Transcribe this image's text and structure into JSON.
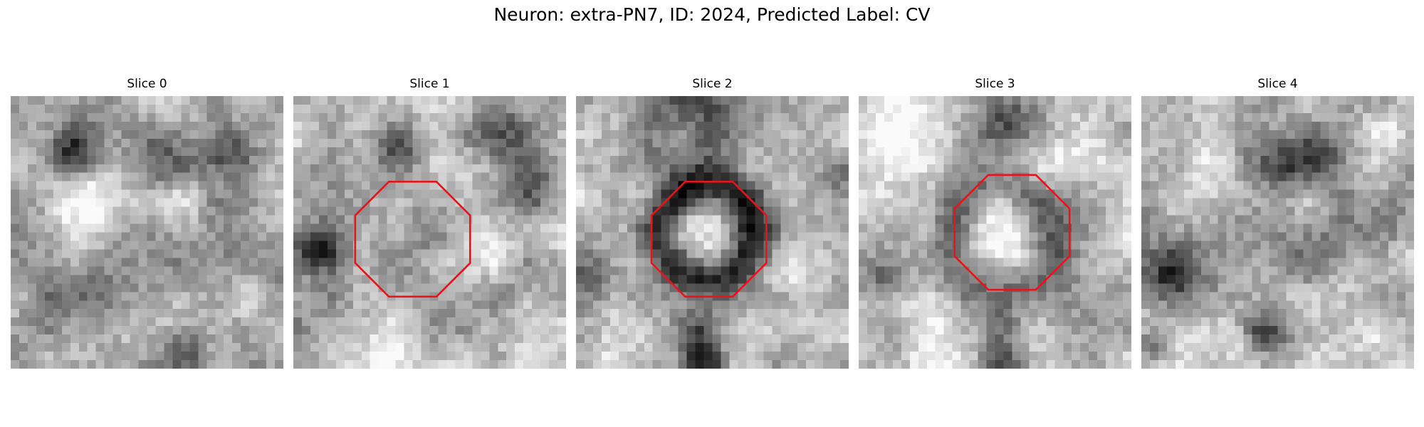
{
  "title": "Neuron: extra-PN7, ID: 2024, Predicted Label: CV",
  "panels": [
    {
      "label": "Slice 0",
      "roi": false
    },
    {
      "label": "Slice 1",
      "roi": true,
      "roi_color": "#e8141c"
    },
    {
      "label": "Slice 2",
      "roi": true,
      "roi_color": "#e8141c"
    },
    {
      "label": "Slice 3",
      "roi": true,
      "roi_color": "#e8141c"
    },
    {
      "label": "Slice 4",
      "roi": false
    }
  ],
  "colormap": "gray"
}
